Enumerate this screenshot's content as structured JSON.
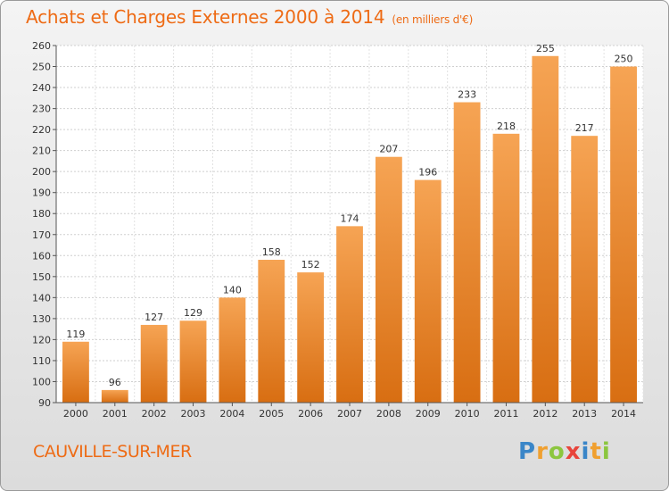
{
  "header": {
    "title": "Achats et Charges Externes 2000 à 2014",
    "subtitle": "(en milliers d'€)"
  },
  "footer": {
    "commune": "CAUVILLE-SUR-MER",
    "logo_letters": [
      {
        "ch": "P",
        "color": "#3a86c8"
      },
      {
        "ch": "r",
        "color": "#f0a030"
      },
      {
        "ch": "o",
        "color": "#8cc63f"
      },
      {
        "ch": "x",
        "color": "#e8453c"
      },
      {
        "ch": "i",
        "color": "#3a86c8"
      },
      {
        "ch": "t",
        "color": "#f0a030"
      },
      {
        "ch": "i",
        "color": "#8cc63f"
      }
    ]
  },
  "chart_data": {
    "type": "bar",
    "categories": [
      "2000",
      "2001",
      "2002",
      "2003",
      "2004",
      "2005",
      "2006",
      "2007",
      "2008",
      "2009",
      "2010",
      "2011",
      "2012",
      "2013",
      "2014"
    ],
    "values": [
      119,
      96,
      127,
      129,
      140,
      158,
      152,
      174,
      207,
      196,
      233,
      218,
      255,
      217,
      250
    ],
    "ylim": [
      90,
      260
    ],
    "yticks": [
      90,
      100,
      110,
      120,
      130,
      140,
      150,
      160,
      170,
      180,
      190,
      200,
      210,
      220,
      230,
      240,
      250,
      260
    ],
    "grid": true,
    "bar_color_top": "#f6a454",
    "bar_color_bottom": "#d86e12"
  }
}
